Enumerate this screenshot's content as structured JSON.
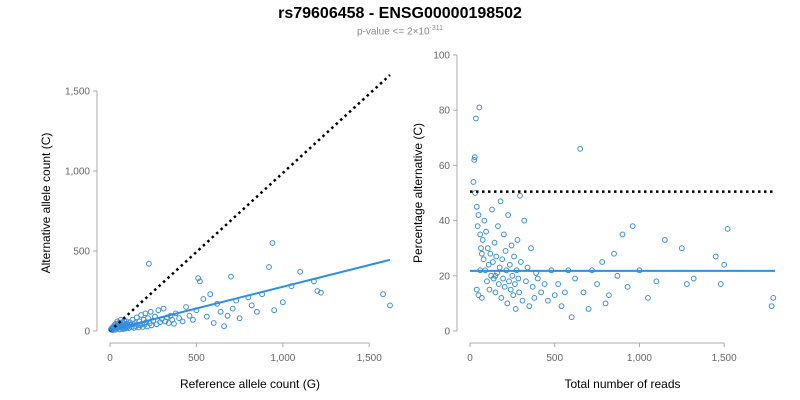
{
  "title": "rs79606458 - ENSG00000198502",
  "subtitle": {
    "prefix": "p-value <= 2",
    "times": "×",
    "base": "10",
    "exponent": "-311"
  },
  "colors": {
    "points": "#3b8fd6",
    "regression": "#2b8ee8",
    "reference_line": "#000000"
  },
  "chart_data": [
    {
      "type": "scatter",
      "title": "",
      "xlabel": "Reference allele count (G)",
      "ylabel": "Alternative allele count (C)",
      "xlim": [
        0,
        1620
      ],
      "ylim": [
        0,
        1600
      ],
      "xticks": [
        0,
        500,
        1000,
        1500
      ],
      "xtick_labels": [
        "0",
        "500",
        "1,000",
        "1,500"
      ],
      "yticks": [
        0,
        500,
        1000,
        1500
      ],
      "ytick_labels": [
        "0",
        "500",
        "1,000",
        "1,500"
      ],
      "grid": false,
      "reference_line": {
        "style": "dotted",
        "x": [
          0,
          1620
        ],
        "y": [
          0,
          1600
        ]
      },
      "regression_line": {
        "style": "solid",
        "x": [
          0,
          1620
        ],
        "y": [
          5,
          445
        ]
      },
      "points": [
        [
          5,
          10
        ],
        [
          8,
          15
        ],
        [
          10,
          8
        ],
        [
          12,
          20
        ],
        [
          15,
          5
        ],
        [
          18,
          25
        ],
        [
          20,
          12
        ],
        [
          22,
          30
        ],
        [
          25,
          18
        ],
        [
          28,
          40
        ],
        [
          30,
          22
        ],
        [
          32,
          8
        ],
        [
          35,
          45
        ],
        [
          38,
          28
        ],
        [
          40,
          15
        ],
        [
          42,
          60
        ],
        [
          45,
          35
        ],
        [
          48,
          20
        ],
        [
          50,
          50
        ],
        [
          52,
          30
        ],
        [
          55,
          10
        ],
        [
          58,
          42
        ],
        [
          60,
          25
        ],
        [
          62,
          70
        ],
        [
          65,
          38
        ],
        [
          68,
          18
        ],
        [
          70,
          55
        ],
        [
          72,
          30
        ],
        [
          75,
          12
        ],
        [
          78,
          48
        ],
        [
          80,
          22
        ],
        [
          82,
          65
        ],
        [
          85,
          35
        ],
        [
          88,
          15
        ],
        [
          90,
          40
        ],
        [
          92,
          28
        ],
        [
          95,
          60
        ],
        [
          98,
          20
        ],
        [
          100,
          45
        ],
        [
          105,
          32
        ],
        [
          110,
          18
        ],
        [
          115,
          55
        ],
        [
          120,
          38
        ],
        [
          125,
          25
        ],
        [
          130,
          70
        ],
        [
          135,
          42
        ],
        [
          140,
          20
        ],
        [
          145,
          50
        ],
        [
          150,
          30
        ],
        [
          155,
          85
        ],
        [
          160,
          40
        ],
        [
          165,
          22
        ],
        [
          170,
          60
        ],
        [
          175,
          35
        ],
        [
          180,
          100
        ],
        [
          185,
          45
        ],
        [
          190,
          25
        ],
        [
          195,
          70
        ],
        [
          200,
          40
        ],
        [
          205,
          110
        ],
        [
          210,
          55
        ],
        [
          215,
          28
        ],
        [
          220,
          80
        ],
        [
          225,
          420
        ],
        [
          230,
          48
        ],
        [
          235,
          120
        ],
        [
          240,
          35
        ],
        [
          250,
          65
        ],
        [
          260,
          90
        ],
        [
          270,
          42
        ],
        [
          280,
          130
        ],
        [
          290,
          55
        ],
        [
          300,
          75
        ],
        [
          310,
          140
        ],
        [
          320,
          60
        ],
        [
          330,
          85
        ],
        [
          340,
          50
        ],
        [
          350,
          95
        ],
        [
          360,
          70
        ],
        [
          370,
          45
        ],
        [
          380,
          110
        ],
        [
          400,
          80
        ],
        [
          420,
          60
        ],
        [
          440,
          150
        ],
        [
          460,
          95
        ],
        [
          480,
          70
        ],
        [
          500,
          130
        ],
        [
          510,
          330
        ],
        [
          520,
          310
        ],
        [
          540,
          200
        ],
        [
          560,
          90
        ],
        [
          580,
          230
        ],
        [
          600,
          50
        ],
        [
          620,
          170
        ],
        [
          640,
          120
        ],
        [
          660,
          30
        ],
        [
          680,
          95
        ],
        [
          700,
          340
        ],
        [
          710,
          140
        ],
        [
          730,
          190
        ],
        [
          750,
          80
        ],
        [
          800,
          210
        ],
        [
          820,
          160
        ],
        [
          850,
          120
        ],
        [
          880,
          230
        ],
        [
          920,
          400
        ],
        [
          940,
          550
        ],
        [
          950,
          130
        ],
        [
          1000,
          180
        ],
        [
          1050,
          280
        ],
        [
          1100,
          370
        ],
        [
          1180,
          310
        ],
        [
          1200,
          250
        ],
        [
          1220,
          240
        ],
        [
          1580,
          230
        ],
        [
          1620,
          160
        ]
      ]
    },
    {
      "type": "scatter",
      "title": "",
      "xlabel": "Total number of reads",
      "ylabel": "Percentage alternative (C)",
      "xlim": [
        0,
        1800
      ],
      "ylim": [
        0,
        100
      ],
      "xticks": [
        0,
        500,
        1000,
        1500
      ],
      "xtick_labels": [
        "0",
        "500",
        "1,000",
        "1,500"
      ],
      "yticks": [
        0,
        20,
        40,
        60,
        80,
        100
      ],
      "ytick_labels": [
        "0",
        "20",
        "40",
        "60",
        "80",
        "100"
      ],
      "grid": false,
      "reference_line": {
        "style": "dotted",
        "x": [
          0,
          1800
        ],
        "y": [
          50.5,
          50.5
        ]
      },
      "regression_line": {
        "style": "solid",
        "x": [
          0,
          1800
        ],
        "y": [
          21.8,
          21.8
        ]
      },
      "points": [
        [
          20,
          54
        ],
        [
          25,
          62
        ],
        [
          28,
          63
        ],
        [
          35,
          77
        ],
        [
          55,
          81
        ],
        [
          30,
          50
        ],
        [
          40,
          45
        ],
        [
          45,
          38
        ],
        [
          50,
          42
        ],
        [
          60,
          35
        ],
        [
          65,
          30
        ],
        [
          70,
          28
        ],
        [
          75,
          33
        ],
        [
          80,
          26
        ],
        [
          85,
          40
        ],
        [
          90,
          22
        ],
        [
          95,
          36
        ],
        [
          100,
          18
        ],
        [
          105,
          30
        ],
        [
          110,
          24
        ],
        [
          115,
          15
        ],
        [
          120,
          28
        ],
        [
          125,
          20
        ],
        [
          130,
          44
        ],
        [
          135,
          25
        ],
        [
          140,
          19
        ],
        [
          145,
          32
        ],
        [
          150,
          14
        ],
        [
          155,
          27
        ],
        [
          160,
          21
        ],
        [
          165,
          38
        ],
        [
          170,
          17
        ],
        [
          175,
          23
        ],
        [
          180,
          47
        ],
        [
          185,
          12
        ],
        [
          190,
          26
        ],
        [
          195,
          19
        ],
        [
          200,
          35
        ],
        [
          205,
          16
        ],
        [
          210,
          29
        ],
        [
          215,
          22
        ],
        [
          220,
          10
        ],
        [
          225,
          42
        ],
        [
          230,
          18
        ],
        [
          235,
          24
        ],
        [
          240,
          15
        ],
        [
          245,
          31
        ],
        [
          250,
          20
        ],
        [
          255,
          13
        ],
        [
          260,
          27
        ],
        [
          265,
          17
        ],
        [
          270,
          8
        ],
        [
          275,
          22
        ],
        [
          280,
          33
        ],
        [
          285,
          19
        ],
        [
          290,
          14
        ],
        [
          295,
          49
        ],
        [
          300,
          25
        ],
        [
          310,
          11
        ],
        [
          320,
          40
        ],
        [
          330,
          18
        ],
        [
          340,
          23
        ],
        [
          350,
          9
        ],
        [
          360,
          30
        ],
        [
          370,
          16
        ],
        [
          380,
          12
        ],
        [
          390,
          21
        ],
        [
          400,
          19
        ],
        [
          420,
          14
        ],
        [
          440,
          17
        ],
        [
          460,
          11
        ],
        [
          480,
          22
        ],
        [
          500,
          13
        ],
        [
          520,
          17
        ],
        [
          540,
          9
        ],
        [
          560,
          14
        ],
        [
          580,
          22
        ],
        [
          600,
          5
        ],
        [
          620,
          19
        ],
        [
          650,
          66
        ],
        [
          670,
          14
        ],
        [
          700,
          8
        ],
        [
          720,
          22
        ],
        [
          750,
          17
        ],
        [
          780,
          25
        ],
        [
          800,
          10
        ],
        [
          820,
          13
        ],
        [
          850,
          28
        ],
        [
          870,
          20
        ],
        [
          900,
          35
        ],
        [
          930,
          16
        ],
        [
          960,
          38
        ],
        [
          1000,
          22
        ],
        [
          1050,
          12
        ],
        [
          1100,
          18
        ],
        [
          1150,
          33
        ],
        [
          1250,
          30
        ],
        [
          1280,
          17
        ],
        [
          1320,
          19
        ],
        [
          1450,
          27
        ],
        [
          1480,
          17
        ],
        [
          1500,
          24
        ],
        [
          1520,
          37
        ],
        [
          1780,
          9
        ],
        [
          1790,
          12
        ],
        [
          50,
          13
        ],
        [
          60,
          22
        ],
        [
          40,
          15
        ],
        [
          70,
          12
        ],
        [
          150,
          20
        ]
      ]
    }
  ]
}
